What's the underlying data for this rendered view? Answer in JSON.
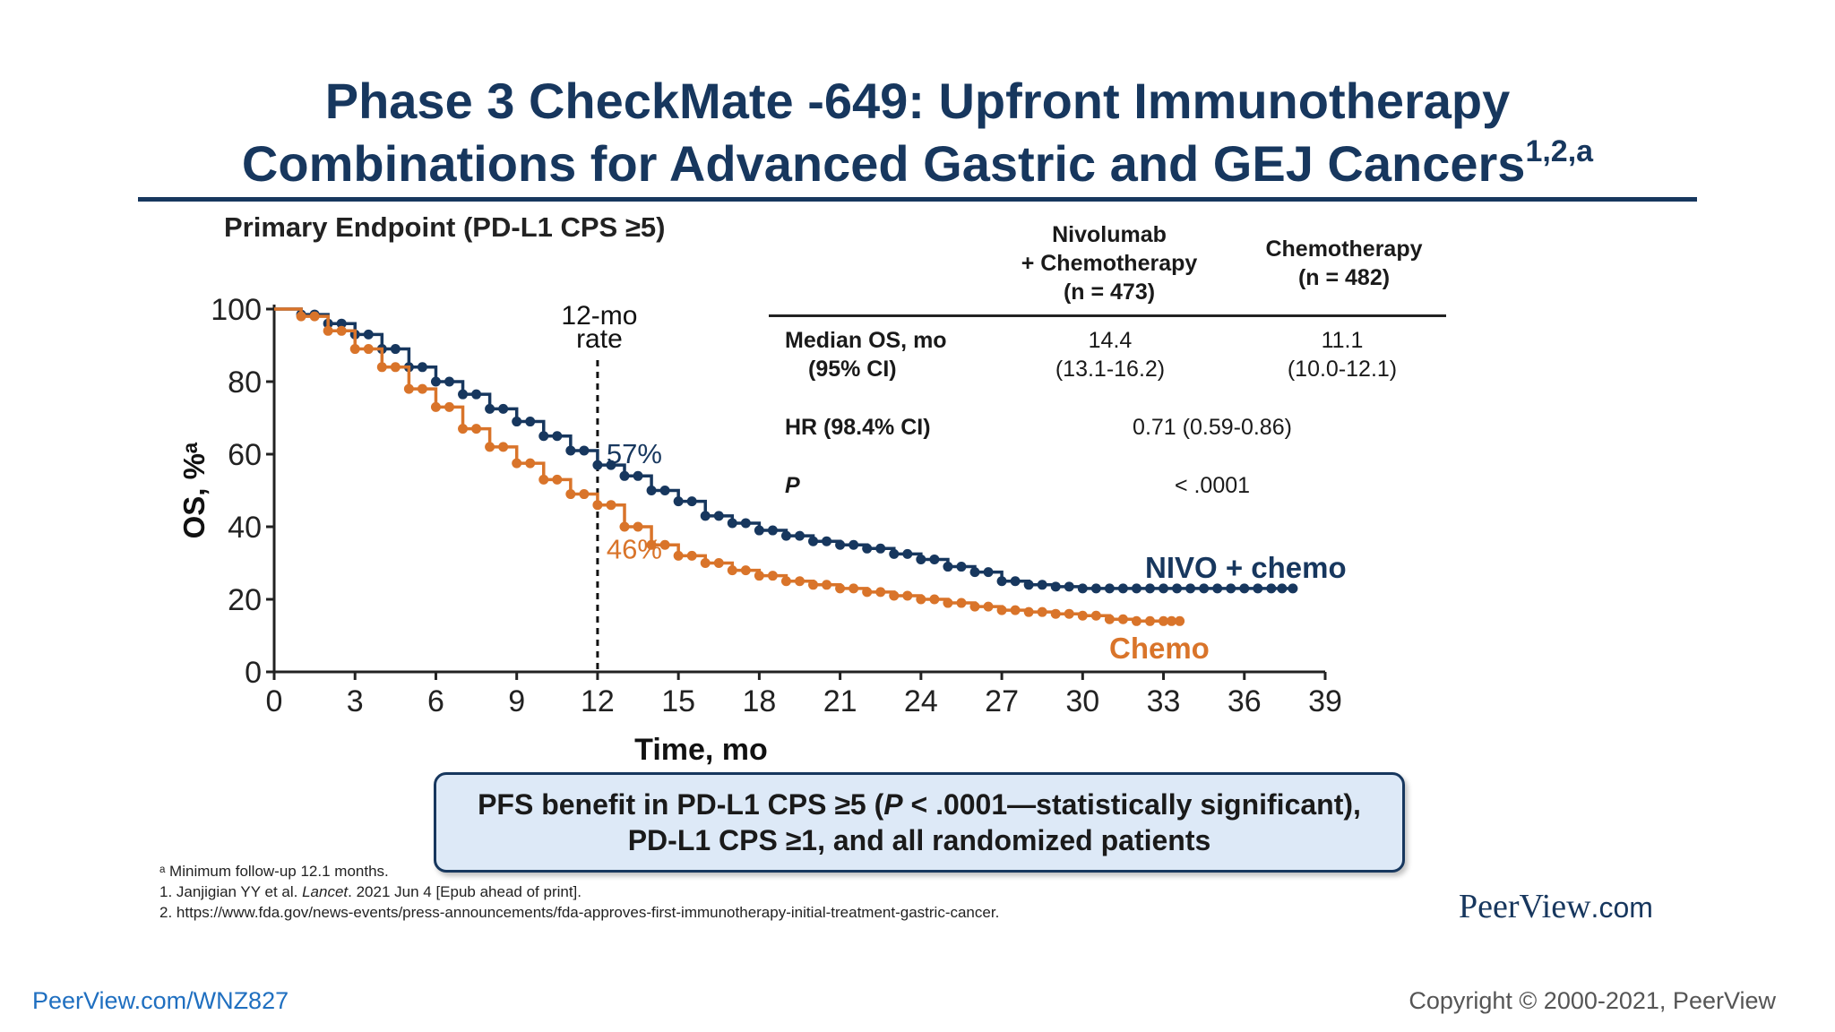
{
  "slide": {
    "title_line1": "Phase 3 CheckMate -649: Upfront Immunotherapy",
    "title_line2": "Combinations for Advanced Gastric and GEJ Cancers",
    "title_superscript": "1,2,a",
    "subtitle": "Primary Endpoint (PD-L1 CPS ≥5)",
    "callout_line1_a": "PFS benefit in PD-L1 CPS ≥5 (",
    "callout_line1_p": "P",
    "callout_line1_b": " < .0001—statistically significant),",
    "callout_line2": "PD-L1 CPS ≥1, and all randomized patients",
    "footnote_a": "ᵃ Minimum follow-up 12.1 months.",
    "footnote_1_a": "1. Janjigian YY et al. ",
    "footnote_1_journal": "Lancet",
    "footnote_1_b": ". 2021 Jun 4 [Epub ahead of print].",
    "footnote_2": "2. https://www.fda.gov/news-events/press-announcements/fda-approves-first-immunotherapy-initial-treatment-gastric-cancer.",
    "brand_name": "PeerView",
    "brand_suffix": ".com",
    "link": "PeerView.com/WNZ827",
    "copyright": "Copyright © 2000-2021, PeerView"
  },
  "table": {
    "col1_line1": "Nivolumab",
    "col1_line2": "+ Chemotherapy",
    "col1_line3": "(n = 473)",
    "col2_line1": "Chemotherapy",
    "col2_line2": "(n = 482)",
    "row1_label_line1": "Median OS, mo",
    "row1_label_line2": "(95% CI)",
    "row1_col1_line1": "14.4",
    "row1_col1_line2": "(13.1-16.2)",
    "row1_col2_line1": "11.1",
    "row1_col2_line2": "(10.0-12.1)",
    "row2_label": "HR (98.4% CI)",
    "row2_value": "0.71 (0.59-0.86)",
    "row3_label": "P",
    "row3_value": "< .0001"
  },
  "colors": {
    "nivo": "#17375e",
    "chemo": "#d9742a",
    "title": "#17375e"
  },
  "chart_data": {
    "type": "line",
    "title": "",
    "xlabel": "Time, mo",
    "ylabel": "OS, %ᵃ",
    "xlim": [
      0,
      39
    ],
    "ylim": [
      0,
      100
    ],
    "xticks": [
      "0",
      "3",
      "6",
      "9",
      "12",
      "15",
      "18",
      "21",
      "24",
      "27",
      "30",
      "33",
      "36",
      "39"
    ],
    "yticks": [
      "0",
      "20",
      "40",
      "60",
      "80",
      "100"
    ],
    "reference_line": {
      "x": 12,
      "label_line1": "12-mo",
      "label_line2": "rate"
    },
    "annotations": [
      {
        "text": "57%",
        "series": "NIVO + chemo",
        "x": 12,
        "y": 57
      },
      {
        "text": "46%",
        "series": "Chemo",
        "x": 12,
        "y": 46
      }
    ],
    "series": [
      {
        "name": "NIVO + chemo",
        "x": [
          0,
          1,
          2,
          3,
          4,
          5,
          6,
          7,
          8,
          9,
          10,
          11,
          12,
          13,
          14,
          15,
          16,
          17,
          18,
          19,
          20,
          21,
          22,
          23,
          24,
          25,
          26,
          27,
          28,
          29,
          30,
          31,
          32,
          33,
          34,
          35,
          36,
          37,
          37.8
        ],
        "y": [
          100,
          98.5,
          96,
          93,
          89,
          84,
          80,
          76.5,
          72.5,
          69,
          65,
          61,
          57,
          54,
          50,
          47,
          43,
          41,
          39,
          37.5,
          36,
          35,
          34,
          32.5,
          31,
          29,
          27.5,
          25,
          24,
          23.5,
          23,
          23,
          23,
          23,
          23,
          23,
          23,
          23,
          23
        ]
      },
      {
        "name": "Chemo",
        "x": [
          0,
          1,
          2,
          3,
          4,
          5,
          6,
          7,
          8,
          9,
          10,
          11,
          12,
          13,
          14,
          15,
          16,
          17,
          18,
          19,
          20,
          21,
          22,
          23,
          24,
          25,
          26,
          27,
          28,
          29,
          30,
          31,
          32,
          33,
          33.6
        ],
        "y": [
          100,
          98,
          94,
          89,
          84,
          78,
          73,
          67,
          62,
          57.5,
          53,
          49,
          46,
          40,
          35,
          32,
          30,
          28,
          26.5,
          25,
          24,
          23,
          22,
          21,
          20,
          19,
          18,
          17,
          16.5,
          16,
          15.5,
          14.5,
          14,
          14,
          14
        ]
      }
    ],
    "legend": [
      {
        "label": "NIVO + chemo",
        "placement": "at line end"
      },
      {
        "label": "Chemo",
        "placement": "at line end"
      }
    ]
  }
}
